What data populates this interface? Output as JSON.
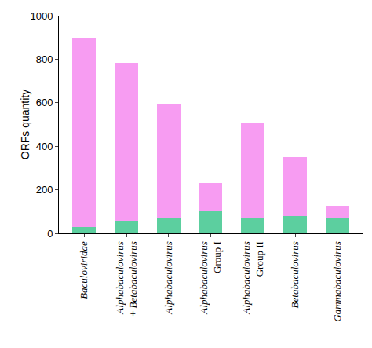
{
  "chart_data": {
    "type": "bar",
    "stacked": true,
    "y_label": "ORFs quantity",
    "categories": [
      "Baculoviridae",
      "Alphabaculovirus\n+ Betabaculovirus",
      "Alphabaculovirus",
      "Alphabaculovirus\nGroup I",
      "Alphabaculovirus\nGroup II",
      "Betabaculovirus",
      "Gammabaculovirus"
    ],
    "series": [
      {
        "color": "#5ccf9f",
        "values": [
          30,
          58,
          68,
          106,
          72,
          78,
          68
        ]
      },
      {
        "color": "#f79cf2",
        "values": [
          865,
          724,
          525,
          126,
          433,
          271,
          59
        ]
      }
    ],
    "ylim": [
      0,
      1000
    ],
    "yticks": [
      0,
      200,
      400,
      600,
      800,
      1000
    ],
    "grid": false
  }
}
